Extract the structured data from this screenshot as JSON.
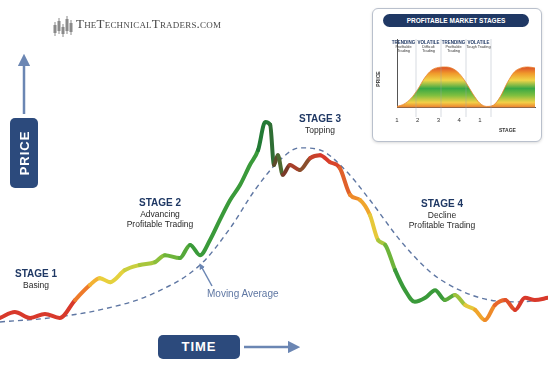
{
  "logo": "TheTechnicalTraders.com",
  "chart_data": [
    {
      "type": "line",
      "x_label": "TIME",
      "y_label": "PRICE",
      "xlim": [
        0,
        100
      ],
      "ylim": [
        0,
        100
      ],
      "tick_labels": false,
      "grid": false,
      "annotations": [
        {
          "title": "STAGE 1",
          "text": [
            "Basing"
          ]
        },
        {
          "title": "STAGE 2",
          "text": [
            "Advancing",
            "Profitable Trading"
          ]
        },
        {
          "title": "STAGE 3",
          "text": [
            "Topping"
          ]
        },
        {
          "title": "STAGE 4",
          "text": [
            "Decline",
            "Profitable Trading"
          ]
        },
        {
          "text": [
            "Moving Average"
          ]
        }
      ],
      "series": [
        {
          "x": [
            0,
            2.7,
            5.5,
            8.2,
            10.9,
            13.7,
            16.4,
            18.2,
            20.1,
            22.8,
            25.5,
            28.3,
            30.1,
            32.8,
            34.7,
            36.5,
            38.3,
            40.1,
            42.0,
            43.8,
            45.6,
            47.1,
            48.4,
            49.3,
            50.0,
            50.7,
            51.6,
            52.9,
            54.7,
            56.6,
            58.4,
            60.2,
            62.0,
            63.9,
            65.7,
            67.5,
            69.0,
            70.3,
            72.1,
            73.9,
            75.7,
            77.6,
            79.4,
            81.2,
            83.0,
            84.9,
            86.7,
            88.5,
            90.3,
            92.2,
            94.0,
            95.8,
            97.6,
            100
          ],
          "values": [
            12.9,
            14.5,
            12.9,
            14.0,
            12.9,
            17.8,
            21.9,
            23.8,
            22.7,
            26.0,
            27.4,
            28.2,
            30.1,
            29.3,
            32.9,
            30.1,
            34.2,
            39.7,
            45.2,
            49.3,
            54.8,
            58.9,
            66.6,
            65.8,
            54.8,
            57.5,
            52.1,
            54.8,
            53.4,
            56.7,
            57.5,
            55.6,
            54.0,
            46.6,
            45.2,
            41.1,
            34.2,
            32.9,
            26.0,
            20.5,
            17.3,
            18.4,
            20.5,
            17.8,
            19.2,
            16.4,
            15.1,
            12.3,
            16.4,
            17.8,
            15.1,
            18.4,
            17.8,
            18.4
          ],
          "colors": [
            "#d8392b",
            "#d8392b",
            "#d8392b",
            "#d8392b",
            "#d8392b",
            "#ee7a2a",
            "#f3b233",
            "#e9cf3c",
            "#e4d13e",
            "#c9cf3e",
            "#a8c63c",
            "#8cbf3b",
            "#6db43a",
            "#55a83a",
            "#3a9a3a",
            "#3a9a3a",
            "#3a9a3a",
            "#3a9a3a",
            "#3a9a3a",
            "#3a9a3a",
            "#3a9a3a",
            "#227a35",
            "#227a35",
            "#2f6e34",
            "#5e4a2c",
            "#4d6a30",
            "#7a3a28",
            "#a8402a",
            "#8a4f2c",
            "#c8412b",
            "#d8392b",
            "#d8452b",
            "#e0602a",
            "#ee8a2a",
            "#f0a52c",
            "#e6c83a",
            "#a8c63c",
            "#6db43a",
            "#3a9a3a",
            "#3a9a3a",
            "#3a9a3a",
            "#3a9a3a",
            "#3a9a3a",
            "#5aaa3a",
            "#9fc23c",
            "#e4c83c",
            "#f0a52c",
            "#ee8a2a",
            "#e8662a",
            "#e0502a",
            "#d8392b",
            "#d8392b",
            "#d8392b",
            "#d8392b"
          ],
          "line_style": "solid"
        },
        {
          "x": [
            0,
            9.1,
            18.2,
            27.4,
            36.5,
            42.0,
            46.5,
            51.1,
            54.7,
            58.4,
            63.0,
            67.5,
            73.0,
            78.5,
            83.9,
            89.4,
            94.9,
            100
          ],
          "values": [
            11.8,
            12.9,
            15.1,
            19.2,
            27.4,
            37.5,
            47.9,
            56.2,
            59.5,
            58.9,
            53.4,
            45.2,
            34.2,
            25.5,
            20.5,
            17.8,
            17.3,
            18.4
          ],
          "color": "#5f77a3",
          "line_style": "dashed"
        }
      ]
    },
    {
      "type": "area",
      "title": "PROFITABLE MARKET STAGES",
      "x_label": "STAGE",
      "y_label": "PRICE",
      "categories": [
        "1",
        null,
        null,
        "2",
        null,
        null,
        "3",
        null,
        null,
        "4",
        null,
        null,
        "1",
        null,
        null,
        null,
        null,
        null,
        null,
        null,
        null
      ],
      "values": [
        0.3,
        0.8,
        2,
        4,
        6.5,
        8.2,
        8.8,
        8.9,
        8.6,
        7.5,
        5.5,
        3,
        1,
        0.3,
        0.6,
        2.5,
        5.5,
        7.8,
        8.7,
        8.9,
        8.7
      ],
      "ylim": [
        0,
        15
      ],
      "grid": false,
      "tick_labels": "x",
      "columns": [
        {
          "title": "TRENDING",
          "text": [
            "Profitable Trading"
          ]
        },
        {
          "title": "VOLATILE",
          "text": [
            "Difficult Trading"
          ]
        },
        {
          "title": "TRENDING",
          "text": [
            "Profitable Trading"
          ]
        },
        {
          "title": "VOLATILE",
          "text": [
            "Tough Trading"
          ]
        }
      ]
    }
  ]
}
